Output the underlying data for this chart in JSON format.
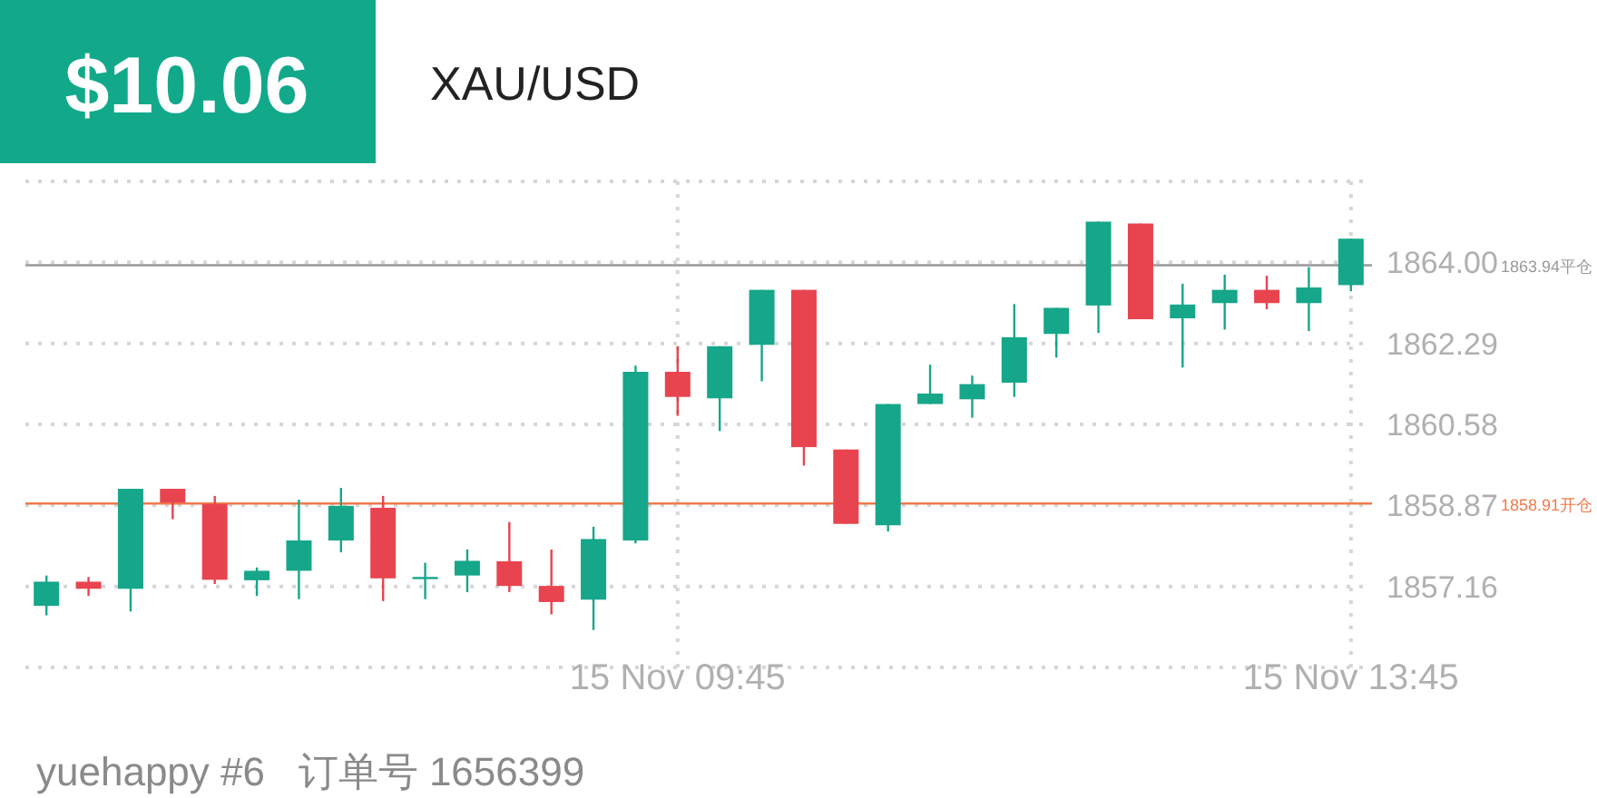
{
  "chart_data": {
    "type": "candlestick",
    "title": "XAU/USD",
    "categories": [
      null,
      null,
      null,
      null,
      null,
      null,
      null,
      null,
      null,
      null,
      null,
      null,
      null,
      null,
      null,
      "15 Nov 09:45",
      null,
      null,
      null,
      null,
      null,
      null,
      null,
      null,
      null,
      null,
      null,
      null,
      null,
      null,
      null,
      "15 Nov 13:45"
    ],
    "ohlc": [
      [
        1856.75,
        1857.39,
        1856.55,
        1857.26
      ],
      [
        1857.26,
        1857.36,
        1856.96,
        1857.11
      ],
      [
        1857.11,
        1859.22,
        1856.63,
        1859.22
      ],
      [
        1859.22,
        1859.22,
        1858.58,
        1858.93
      ],
      [
        1858.9,
        1859.07,
        1857.21,
        1857.3
      ],
      [
        1857.29,
        1857.56,
        1856.96,
        1857.49
      ],
      [
        1857.49,
        1858.99,
        1856.89,
        1858.13
      ],
      [
        1858.13,
        1859.24,
        1857.88,
        1858.86
      ],
      [
        1858.82,
        1859.07,
        1856.85,
        1857.33
      ],
      [
        1857.36,
        1857.66,
        1856.89,
        1857.36
      ],
      [
        1857.39,
        1857.94,
        1857.04,
        1857.7
      ],
      [
        1857.69,
        1858.52,
        1857.04,
        1857.17
      ],
      [
        1857.17,
        1857.94,
        1856.57,
        1856.83
      ],
      [
        1856.88,
        1858.42,
        1856.24,
        1858.16
      ],
      [
        1858.13,
        1861.82,
        1858.07,
        1861.69
      ],
      [
        1861.69,
        1862.23,
        1860.76,
        1861.16
      ],
      [
        1861.13,
        1862.23,
        1860.44,
        1862.23
      ],
      [
        1862.26,
        1863.42,
        1861.49,
        1863.42
      ],
      [
        1863.42,
        1863.42,
        1859.71,
        1860.1
      ],
      [
        1860.05,
        1860.05,
        1858.48,
        1858.48
      ],
      [
        1858.45,
        1861.01,
        1858.32,
        1861.01
      ],
      [
        1861.01,
        1861.84,
        1861.01,
        1861.23
      ],
      [
        1861.11,
        1861.61,
        1860.72,
        1861.43
      ],
      [
        1861.46,
        1863.12,
        1861.16,
        1862.42
      ],
      [
        1862.49,
        1863.04,
        1861.99,
        1863.04
      ],
      [
        1863.09,
        1864.86,
        1862.51,
        1864.86
      ],
      [
        1864.82,
        1864.82,
        1862.8,
        1862.8
      ],
      [
        1862.82,
        1863.55,
        1861.78,
        1863.11
      ],
      [
        1863.14,
        1863.74,
        1862.58,
        1863.42
      ],
      [
        1863.42,
        1863.72,
        1863.01,
        1863.14
      ],
      [
        1863.14,
        1863.9,
        1862.55,
        1863.47
      ],
      [
        1863.52,
        1864.5,
        1863.39,
        1864.5
      ]
    ],
    "colors": [
      "#16a68a",
      "#e8444f",
      "#16a68a",
      "#e8444f",
      "#e8444f",
      "#16a68a",
      "#16a68a",
      "#16a68a",
      "#e8444f",
      "#16a68a",
      "#16a68a",
      "#e8444f",
      "#e8444f",
      "#16a68a",
      "#16a68a",
      "#e8444f",
      "#16a68a",
      "#16a68a",
      "#e8444f",
      "#e8444f",
      "#16a68a",
      "#16a68a",
      "#16a68a",
      "#16a68a",
      "#16a68a",
      "#16a68a",
      "#e8444f",
      "#16a68a",
      "#16a68a",
      "#e8444f",
      "#16a68a",
      "#16a68a"
    ],
    "ylim": [
      1855.45,
      1865.71
    ],
    "yticks": [
      {
        "value": 1855.45,
        "label": null
      },
      1857.16,
      1858.87,
      1860.58,
      1862.29,
      {
        "value": 1864,
        "label": "1864.00"
      },
      {
        "value": 1865.71,
        "label": null
      }
    ],
    "ref_lines": [
      {
        "axis": "y",
        "value": 1863.94,
        "label": "1863.94平仓",
        "color": "#999999"
      },
      {
        "axis": "y",
        "value": 1858.91,
        "label": "1858.91开仓",
        "color": "#f07a4a"
      }
    ],
    "grid": true,
    "annotations": [
      "$10.06",
      "yuehappy #6   订单号 1656399"
    ]
  }
}
